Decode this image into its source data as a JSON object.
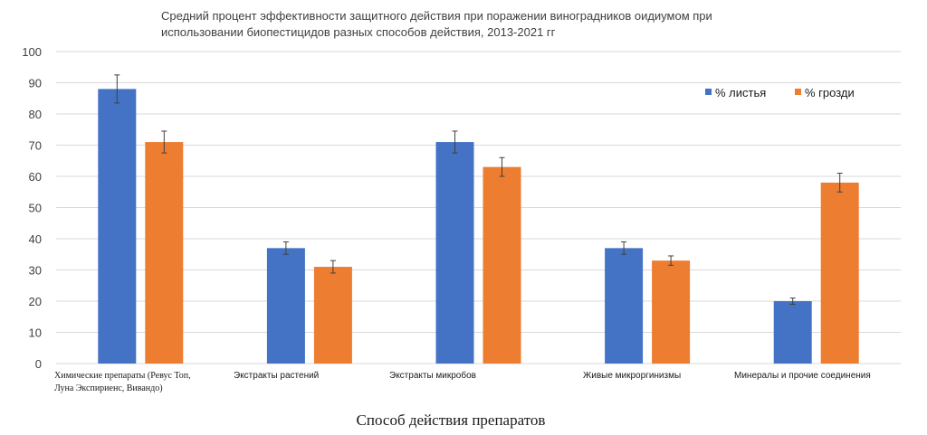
{
  "chart_data": {
    "type": "bar",
    "title_lines": [
      "Средний процент эффективности защитного действия при поражении виноградников оидиумом при",
      "использовании биопестицидов разных способов действия, 2013-2021 гг"
    ],
    "xlabel": "Способ действия препаратов",
    "ylabel": "",
    "ylim": [
      0,
      100
    ],
    "yticks": [
      0,
      10,
      20,
      30,
      40,
      50,
      60,
      70,
      80,
      90,
      100
    ],
    "grid": true,
    "legend_position": "top-right",
    "categories": [
      "Химические препараты (Ревус Топ, Луна Экспириенс, Вивандо)",
      "Экстракты растений",
      "Экстракты микробов",
      "Живые микроргинизмы",
      "Минералы и прочие соединения"
    ],
    "category_lines": [
      [
        "Химические препараты (Ревус Топ,",
        "Луна Экспириенс, Вивандо)"
      ],
      [
        "Экстракты растений"
      ],
      [
        "Экстракты микробов"
      ],
      [
        "Живые микроргинизмы"
      ],
      [
        "Минералы и прочие соединения"
      ]
    ],
    "series": [
      {
        "name": "% листья",
        "color": "#4472c4",
        "values": [
          88,
          37,
          71,
          37,
          20
        ],
        "errors": [
          4.5,
          2,
          3.5,
          2,
          1
        ]
      },
      {
        "name": "% грозди",
        "color": "#ed7d31",
        "values": [
          71,
          31,
          63,
          33,
          58
        ],
        "errors": [
          3.5,
          2,
          3,
          1.5,
          3
        ]
      }
    ]
  }
}
